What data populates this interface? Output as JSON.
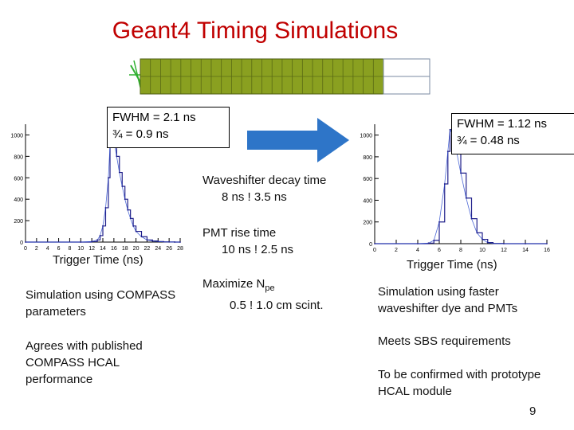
{
  "title": "Geant4 Timing Simulations",
  "page_number": "9",
  "left_panel": {
    "fwhm_line1": "FWHM = 2.1 ns",
    "fwhm_line2": "¾ =  0.9 ns",
    "xlabel": "Trigger Time (ns)",
    "caption_1": "Simulation using COMPASS parameters",
    "caption_2": "Agrees with published COMPASS HCAL performance"
  },
  "right_panel": {
    "fwhm_line1": "FWHM = 1.12 ns",
    "fwhm_line2": "¾ =  0.48 ns",
    "xlabel": "Trigger Time (ns)",
    "caption_1": "Simulation using faster waveshifter dye and PMTs",
    "caption_2": "Meets SBS  requirements",
    "caption_3": "To be confirmed with prototype HCAL module"
  },
  "middle": {
    "item1_line1": "Waveshifter decay time",
    "item1_line2": "8 ns ! 3.5 ns",
    "item2_line1": "PMT rise time",
    "item2_line2": "10 ns ! 2.5 ns",
    "item3_prefix": "Maximize N",
    "item3_sub": "pe",
    "item3_line2": "0.5 ! 1.0 cm scint."
  },
  "colors": {
    "title": "#c00000",
    "arrow": "#2e75c8",
    "hist_line": "#1f1f8a",
    "hist_fit": "#2244cc",
    "detector_fill": "#8aa020",
    "detector_tracks": "#30b030"
  },
  "chart_data": [
    {
      "type": "line",
      "name_hint": "left histogram",
      "x": [
        0,
        10,
        12,
        13,
        13.5,
        14,
        14.5,
        15,
        15.3,
        15.6,
        16,
        16.5,
        17,
        17.5,
        18,
        18.5,
        19,
        19.5,
        20,
        21,
        22,
        23,
        24,
        25,
        26,
        27,
        28
      ],
      "y": [
        0,
        0,
        5,
        20,
        60,
        150,
        320,
        600,
        900,
        1100,
        950,
        800,
        650,
        520,
        400,
        300,
        220,
        150,
        100,
        50,
        20,
        10,
        5,
        2,
        1,
        0,
        0
      ],
      "xlim": [
        0,
        28
      ],
      "ylim": [
        0,
        1100
      ],
      "xticks": [
        0,
        2,
        4,
        6,
        8,
        10,
        12,
        14,
        16,
        18,
        20,
        22,
        24,
        26,
        28
      ],
      "yticks": [
        0,
        200,
        400,
        600,
        800,
        1000
      ],
      "xlabel": "Trigger Time (ns)",
      "grid": false
    },
    {
      "type": "line",
      "name_hint": "right histogram",
      "x": [
        0,
        4,
        5,
        5.5,
        6,
        6.5,
        6.8,
        7,
        7.3,
        7.6,
        8,
        8.5,
        9,
        9.5,
        10,
        10.5,
        11,
        12,
        14,
        16
      ],
      "y": [
        0,
        0,
        5,
        30,
        200,
        550,
        850,
        1050,
        1000,
        850,
        650,
        420,
        230,
        100,
        40,
        10,
        2,
        0,
        0,
        0
      ],
      "xlim": [
        0,
        16
      ],
      "ylim": [
        0,
        1100
      ],
      "xticks": [
        0,
        2,
        4,
        6,
        8,
        10,
        12,
        14,
        16
      ],
      "yticks": [
        0,
        200,
        400,
        600,
        800,
        1000
      ],
      "xlabel": "Trigger Time (ns)",
      "grid": false
    }
  ]
}
